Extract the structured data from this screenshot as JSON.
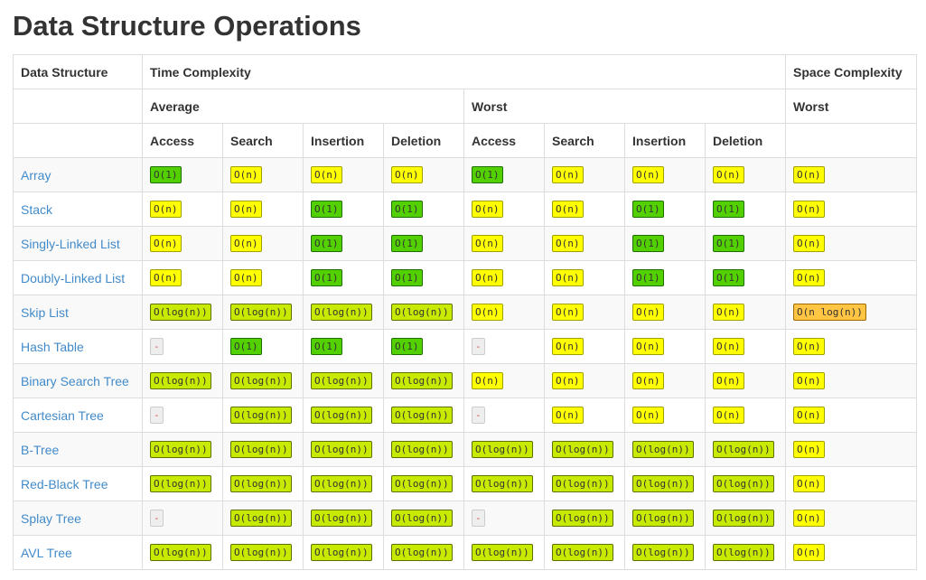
{
  "title": "Data Structure Operations",
  "headers": {
    "data_structure": "Data Structure",
    "time_complexity": "Time Complexity",
    "space_complexity": "Space Complexity",
    "average": "Average",
    "worst": "Worst",
    "space_worst": "Worst",
    "ops": [
      "Access",
      "Search",
      "Insertion",
      "Deletion",
      "Access",
      "Search",
      "Insertion",
      "Deletion"
    ]
  },
  "colors": {
    "green": "#53d000",
    "yellow-green": "#c8ea00",
    "yellow": "#ffff00",
    "orange": "#ffc543",
    "gray": "#eeeeee",
    "link": "#428bca"
  },
  "rows": [
    {
      "name": "Array",
      "cells": [
        [
          "O(1)",
          "green"
        ],
        [
          "O(n)",
          "yellow"
        ],
        [
          "O(n)",
          "yellow"
        ],
        [
          "O(n)",
          "yellow"
        ],
        [
          "O(1)",
          "green"
        ],
        [
          "O(n)",
          "yellow"
        ],
        [
          "O(n)",
          "yellow"
        ],
        [
          "O(n)",
          "yellow"
        ],
        [
          "O(n)",
          "yellow"
        ]
      ]
    },
    {
      "name": "Stack",
      "cells": [
        [
          "O(n)",
          "yellow"
        ],
        [
          "O(n)",
          "yellow"
        ],
        [
          "O(1)",
          "green"
        ],
        [
          "O(1)",
          "green"
        ],
        [
          "O(n)",
          "yellow"
        ],
        [
          "O(n)",
          "yellow"
        ],
        [
          "O(1)",
          "green"
        ],
        [
          "O(1)",
          "green"
        ],
        [
          "O(n)",
          "yellow"
        ]
      ]
    },
    {
      "name": "Singly-Linked List",
      "cells": [
        [
          "O(n)",
          "yellow"
        ],
        [
          "O(n)",
          "yellow"
        ],
        [
          "O(1)",
          "green"
        ],
        [
          "O(1)",
          "green"
        ],
        [
          "O(n)",
          "yellow"
        ],
        [
          "O(n)",
          "yellow"
        ],
        [
          "O(1)",
          "green"
        ],
        [
          "O(1)",
          "green"
        ],
        [
          "O(n)",
          "yellow"
        ]
      ]
    },
    {
      "name": "Doubly-Linked List",
      "cells": [
        [
          "O(n)",
          "yellow"
        ],
        [
          "O(n)",
          "yellow"
        ],
        [
          "O(1)",
          "green"
        ],
        [
          "O(1)",
          "green"
        ],
        [
          "O(n)",
          "yellow"
        ],
        [
          "O(n)",
          "yellow"
        ],
        [
          "O(1)",
          "green"
        ],
        [
          "O(1)",
          "green"
        ],
        [
          "O(n)",
          "yellow"
        ]
      ]
    },
    {
      "name": "Skip List",
      "cells": [
        [
          "O(log(n))",
          "yellow-green"
        ],
        [
          "O(log(n))",
          "yellow-green"
        ],
        [
          "O(log(n))",
          "yellow-green"
        ],
        [
          "O(log(n))",
          "yellow-green"
        ],
        [
          "O(n)",
          "yellow"
        ],
        [
          "O(n)",
          "yellow"
        ],
        [
          "O(n)",
          "yellow"
        ],
        [
          "O(n)",
          "yellow"
        ],
        [
          "O(n log(n))",
          "orange"
        ]
      ]
    },
    {
      "name": "Hash Table",
      "cells": [
        [
          "-",
          "gray"
        ],
        [
          "O(1)",
          "green"
        ],
        [
          "O(1)",
          "green"
        ],
        [
          "O(1)",
          "green"
        ],
        [
          "-",
          "gray"
        ],
        [
          "O(n)",
          "yellow"
        ],
        [
          "O(n)",
          "yellow"
        ],
        [
          "O(n)",
          "yellow"
        ],
        [
          "O(n)",
          "yellow"
        ]
      ]
    },
    {
      "name": "Binary Search Tree",
      "cells": [
        [
          "O(log(n))",
          "yellow-green"
        ],
        [
          "O(log(n))",
          "yellow-green"
        ],
        [
          "O(log(n))",
          "yellow-green"
        ],
        [
          "O(log(n))",
          "yellow-green"
        ],
        [
          "O(n)",
          "yellow"
        ],
        [
          "O(n)",
          "yellow"
        ],
        [
          "O(n)",
          "yellow"
        ],
        [
          "O(n)",
          "yellow"
        ],
        [
          "O(n)",
          "yellow"
        ]
      ]
    },
    {
      "name": "Cartesian Tree",
      "cells": [
        [
          "-",
          "gray"
        ],
        [
          "O(log(n))",
          "yellow-green"
        ],
        [
          "O(log(n))",
          "yellow-green"
        ],
        [
          "O(log(n))",
          "yellow-green"
        ],
        [
          "-",
          "gray"
        ],
        [
          "O(n)",
          "yellow"
        ],
        [
          "O(n)",
          "yellow"
        ],
        [
          "O(n)",
          "yellow"
        ],
        [
          "O(n)",
          "yellow"
        ]
      ]
    },
    {
      "name": "B-Tree",
      "cells": [
        [
          "O(log(n))",
          "yellow-green"
        ],
        [
          "O(log(n))",
          "yellow-green"
        ],
        [
          "O(log(n))",
          "yellow-green"
        ],
        [
          "O(log(n))",
          "yellow-green"
        ],
        [
          "O(log(n))",
          "yellow-green"
        ],
        [
          "O(log(n))",
          "yellow-green"
        ],
        [
          "O(log(n))",
          "yellow-green"
        ],
        [
          "O(log(n))",
          "yellow-green"
        ],
        [
          "O(n)",
          "yellow"
        ]
      ]
    },
    {
      "name": "Red-Black Tree",
      "cells": [
        [
          "O(log(n))",
          "yellow-green"
        ],
        [
          "O(log(n))",
          "yellow-green"
        ],
        [
          "O(log(n))",
          "yellow-green"
        ],
        [
          "O(log(n))",
          "yellow-green"
        ],
        [
          "O(log(n))",
          "yellow-green"
        ],
        [
          "O(log(n))",
          "yellow-green"
        ],
        [
          "O(log(n))",
          "yellow-green"
        ],
        [
          "O(log(n))",
          "yellow-green"
        ],
        [
          "O(n)",
          "yellow"
        ]
      ]
    },
    {
      "name": "Splay Tree",
      "cells": [
        [
          "-",
          "gray"
        ],
        [
          "O(log(n))",
          "yellow-green"
        ],
        [
          "O(log(n))",
          "yellow-green"
        ],
        [
          "O(log(n))",
          "yellow-green"
        ],
        [
          "-",
          "gray"
        ],
        [
          "O(log(n))",
          "yellow-green"
        ],
        [
          "O(log(n))",
          "yellow-green"
        ],
        [
          "O(log(n))",
          "yellow-green"
        ],
        [
          "O(n)",
          "yellow"
        ]
      ]
    },
    {
      "name": "AVL Tree",
      "cells": [
        [
          "O(log(n))",
          "yellow-green"
        ],
        [
          "O(log(n))",
          "yellow-green"
        ],
        [
          "O(log(n))",
          "yellow-green"
        ],
        [
          "O(log(n))",
          "yellow-green"
        ],
        [
          "O(log(n))",
          "yellow-green"
        ],
        [
          "O(log(n))",
          "yellow-green"
        ],
        [
          "O(log(n))",
          "yellow-green"
        ],
        [
          "O(log(n))",
          "yellow-green"
        ],
        [
          "O(n)",
          "yellow"
        ]
      ]
    }
  ]
}
